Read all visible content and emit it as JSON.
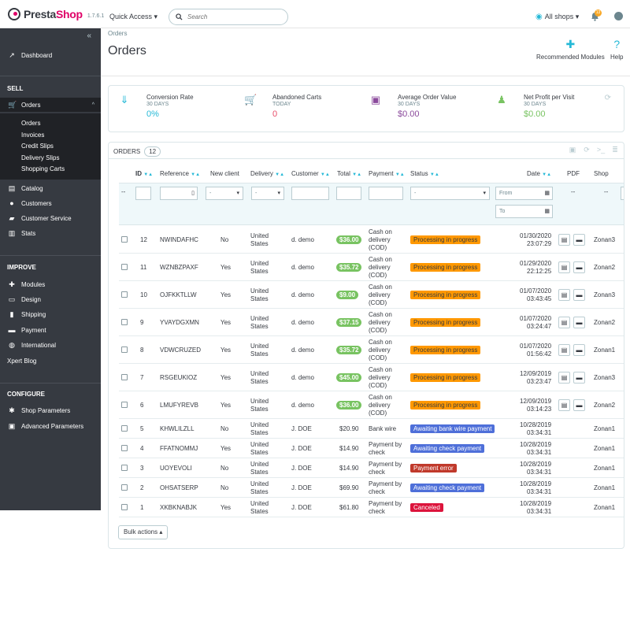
{
  "topbar": {
    "logo_prefix": "Presta",
    "logo_suffix": "Shop",
    "version": "1.7.6.1",
    "quick_access": "Quick Access ▾",
    "search_placeholder": "Search",
    "all_shops": "All shops ▾",
    "notification_count": "13"
  },
  "sidebar": {
    "dashboard": "Dashboard",
    "sell_header": "SELL",
    "orders": "Orders",
    "orders_sub": [
      "Orders",
      "Invoices",
      "Credit Slips",
      "Delivery Slips",
      "Shopping Carts"
    ],
    "catalog": "Catalog",
    "customers": "Customers",
    "customer_service": "Customer Service",
    "stats": "Stats",
    "improve_header": "IMPROVE",
    "modules": "Modules",
    "design": "Design",
    "shipping": "Shipping",
    "payment": "Payment",
    "international": "International",
    "xpert_blog": "Xpert Blog",
    "configure_header": "CONFIGURE",
    "shop_parameters": "Shop Parameters",
    "advanced_parameters": "Advanced Parameters"
  },
  "header": {
    "breadcrumb": "Orders",
    "title": "Orders",
    "recommended_modules": "Recommended Modules",
    "help": "Help"
  },
  "kpis": [
    {
      "title": "Conversion Rate",
      "sub": "30 DAYS",
      "value": "0%",
      "color": "#25b9d7"
    },
    {
      "title": "Abandoned Carts",
      "sub": "TODAY",
      "value": "0",
      "color": "#e84e6a"
    },
    {
      "title": "Average Order Value",
      "sub": "30 DAYS",
      "value": "$0.00",
      "color": "#8b4a9c"
    },
    {
      "title": "Net Profit per Visit",
      "sub": "30 DAYS",
      "value": "$0.00",
      "color": "#78c361"
    }
  ],
  "panel": {
    "title": "ORDERS",
    "count": "12",
    "columns": {
      "id": "ID",
      "reference": "Reference",
      "new_client": "New client",
      "delivery": "Delivery",
      "customer": "Customer",
      "total": "Total",
      "payment": "Payment",
      "status": "Status",
      "date": "Date",
      "pdf": "PDF",
      "shop": "Shop"
    },
    "filters": {
      "dashes": "--",
      "select_default": "-",
      "from": "From",
      "to": "To"
    },
    "bulk_actions": "Bulk actions ▴"
  },
  "orders": [
    {
      "id": "12",
      "reference": "NWINDAFHC",
      "new_client": "No",
      "delivery": "United States",
      "customer": "d. demo",
      "total": "$36.00",
      "total_badge": true,
      "payment": "Cash on delivery (COD)",
      "status": "Processing in progress",
      "status_color": "orange",
      "date": "01/30/2020",
      "time": "23:07:29",
      "pdf": true,
      "shop": "Zonan3"
    },
    {
      "id": "11",
      "reference": "WZNBZPAXF",
      "new_client": "Yes",
      "delivery": "United States",
      "customer": "d. demo",
      "total": "$35.72",
      "total_badge": true,
      "payment": "Cash on delivery (COD)",
      "status": "Processing in progress",
      "status_color": "orange",
      "date": "01/29/2020",
      "time": "22:12:25",
      "pdf": true,
      "shop": "Zonan2"
    },
    {
      "id": "10",
      "reference": "OJFKKTLLW",
      "new_client": "Yes",
      "delivery": "United States",
      "customer": "d. demo",
      "total": "$9.00",
      "total_badge": true,
      "payment": "Cash on delivery (COD)",
      "status": "Processing in progress",
      "status_color": "orange",
      "date": "01/07/2020",
      "time": "03:43:45",
      "pdf": true,
      "shop": "Zonan3"
    },
    {
      "id": "9",
      "reference": "YVAYDGXMN",
      "new_client": "Yes",
      "delivery": "United States",
      "customer": "d. demo",
      "total": "$37.15",
      "total_badge": true,
      "payment": "Cash on delivery (COD)",
      "status": "Processing in progress",
      "status_color": "orange",
      "date": "01/07/2020",
      "time": "03:24:47",
      "pdf": true,
      "shop": "Zonan2"
    },
    {
      "id": "8",
      "reference": "VDWCRUZED",
      "new_client": "Yes",
      "delivery": "United States",
      "customer": "d. demo",
      "total": "$35.72",
      "total_badge": true,
      "payment": "Cash on delivery (COD)",
      "status": "Processing in progress",
      "status_color": "orange",
      "date": "01/07/2020",
      "time": "01:56:42",
      "pdf": true,
      "shop": "Zonan1"
    },
    {
      "id": "7",
      "reference": "RSGEUKIOZ",
      "new_client": "Yes",
      "delivery": "United States",
      "customer": "d. demo",
      "total": "$45.00",
      "total_badge": true,
      "payment": "Cash on delivery (COD)",
      "status": "Processing in progress",
      "status_color": "orange",
      "date": "12/09/2019",
      "time": "03:23:47",
      "pdf": true,
      "shop": "Zonan3"
    },
    {
      "id": "6",
      "reference": "LMUFYREVB",
      "new_client": "Yes",
      "delivery": "United States",
      "customer": "d. demo",
      "total": "$36.00",
      "total_badge": true,
      "payment": "Cash on delivery (COD)",
      "status": "Processing in progress",
      "status_color": "orange",
      "date": "12/09/2019",
      "time": "03:14:23",
      "pdf": true,
      "shop": "Zonan2"
    },
    {
      "id": "5",
      "reference": "KHWLILZLL",
      "new_client": "No",
      "delivery": "United States",
      "customer": "J. DOE",
      "total": "$20.90",
      "total_badge": false,
      "payment": "Bank wire",
      "status": "Awaiting bank wire payment",
      "status_color": "blue",
      "date": "10/28/2019",
      "time": "03:34:31",
      "pdf": false,
      "shop": "Zonan1"
    },
    {
      "id": "4",
      "reference": "FFATNOMMJ",
      "new_client": "Yes",
      "delivery": "United States",
      "customer": "J. DOE",
      "total": "$14.90",
      "total_badge": false,
      "payment": "Payment by check",
      "status": "Awaiting check payment",
      "status_color": "blue",
      "date": "10/28/2019",
      "time": "03:34:31",
      "pdf": false,
      "shop": "Zonan1"
    },
    {
      "id": "3",
      "reference": "UOYEVOLI",
      "new_client": "No",
      "delivery": "United States",
      "customer": "J. DOE",
      "total": "$14.90",
      "total_badge": false,
      "payment": "Payment by check",
      "status": "Payment error",
      "status_color": "red",
      "date": "10/28/2019",
      "time": "03:34:31",
      "pdf": false,
      "shop": "Zonan1"
    },
    {
      "id": "2",
      "reference": "OHSATSERP",
      "new_client": "No",
      "delivery": "United States",
      "customer": "J. DOE",
      "total": "$69.90",
      "total_badge": false,
      "payment": "Payment by check",
      "status": "Awaiting check payment",
      "status_color": "blue",
      "date": "10/28/2019",
      "time": "03:34:31",
      "pdf": false,
      "shop": "Zonan1"
    },
    {
      "id": "1",
      "reference": "XKBKNABJK",
      "new_client": "Yes",
      "delivery": "United States",
      "customer": "J. DOE",
      "total": "$61.80",
      "total_badge": false,
      "payment": "Payment by check",
      "status": "Canceled",
      "status_color": "crimson",
      "date": "10/28/2019",
      "time": "03:34:31",
      "pdf": false,
      "shop": "Zonan1"
    }
  ]
}
